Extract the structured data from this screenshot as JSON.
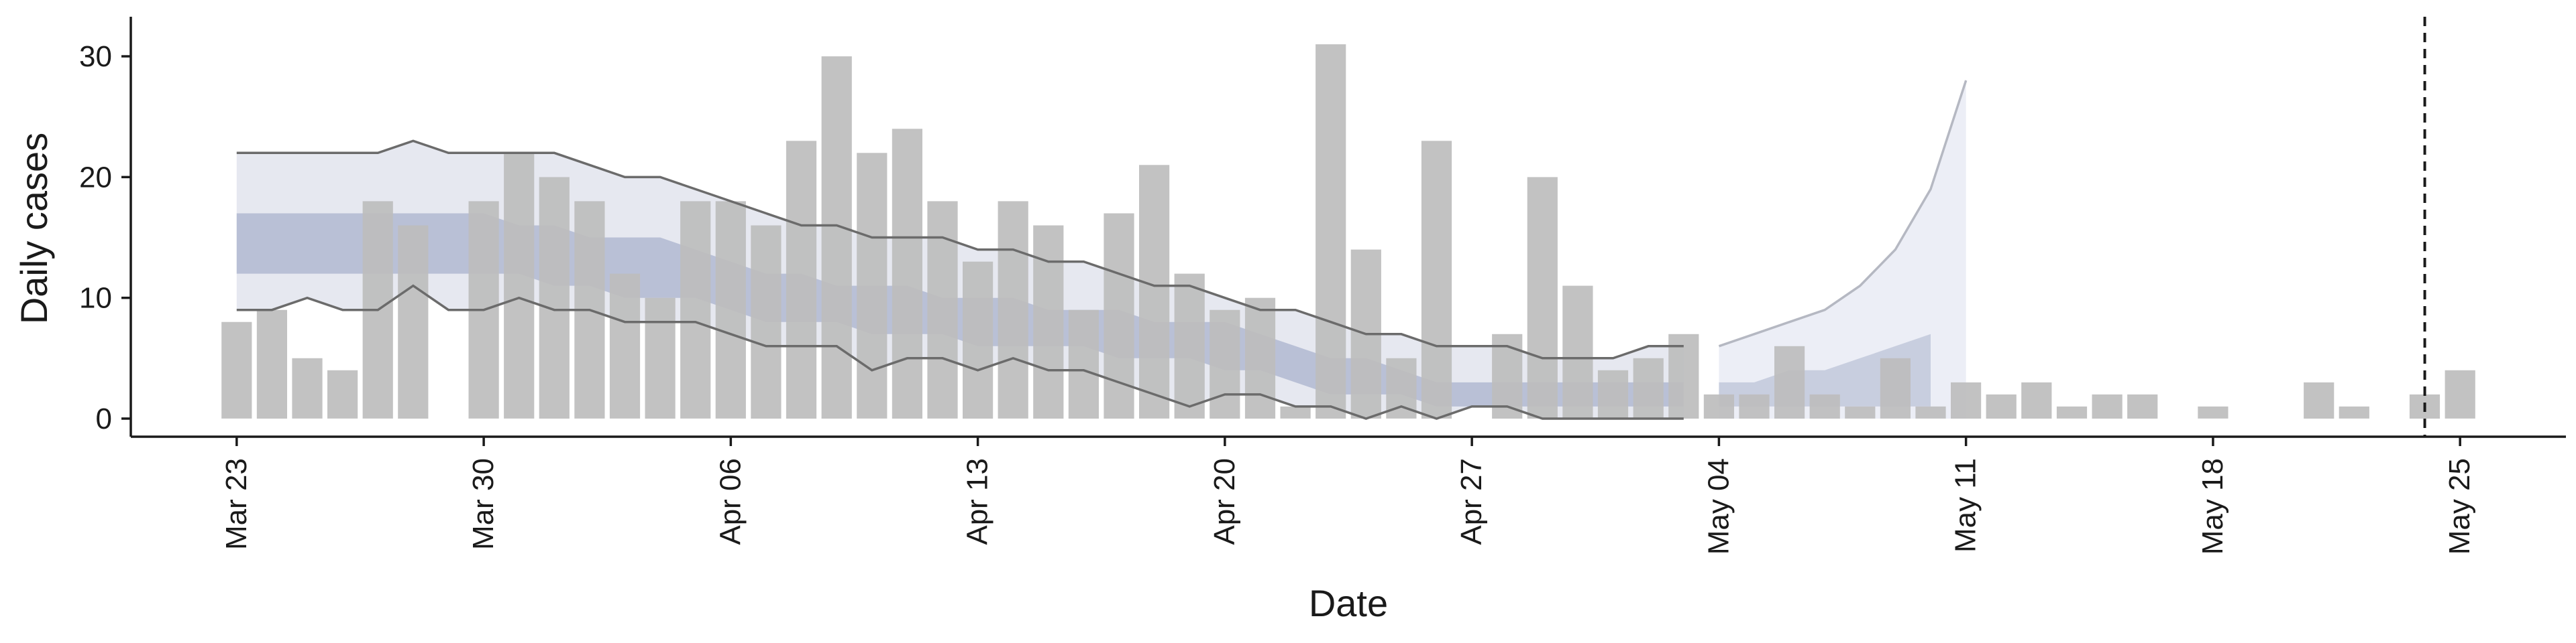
{
  "chart_data": {
    "type": "bar",
    "xlabel": "Date",
    "ylabel": "Daily cases",
    "x_tick_labels": [
      "Mar 23",
      "Mar 30",
      "Apr 06",
      "Apr 13",
      "Apr 20",
      "Apr 27",
      "May 04",
      "May 11",
      "May 18",
      "May 25"
    ],
    "y_ticks": [
      0,
      10,
      20,
      30
    ],
    "ylim": [
      -1.5,
      33
    ],
    "xlim": [
      "2020-03-20",
      "2020-05-28"
    ],
    "grid": false,
    "vline_date": "2020-05-24",
    "colors": {
      "bars": "#bdbdbd",
      "band_outer": "#e6e8f0",
      "band_inner": "#b9c0d6",
      "band_forecast": "#eceef6",
      "outer_lines": "#6b6b6b",
      "forecast_lines": "#b5b8c2",
      "axis": "#1a1a1a"
    },
    "bars": {
      "start_date": "2020-03-23",
      "values": [
        8,
        9,
        5,
        4,
        18,
        16,
        0,
        18,
        22,
        20,
        18,
        12,
        10,
        18,
        18,
        16,
        23,
        30,
        22,
        24,
        18,
        13,
        18,
        16,
        9,
        17,
        21,
        12,
        9,
        10,
        1,
        31,
        14,
        5,
        23,
        0,
        7,
        20,
        11,
        4,
        5,
        7,
        2,
        2,
        6,
        2,
        1,
        5,
        1,
        3,
        2,
        3,
        1,
        2,
        2,
        0,
        1,
        0,
        0,
        3,
        1,
        0,
        2,
        4
      ]
    },
    "nowcast_band": {
      "start_date": "2020-03-23",
      "outer_upper": [
        22,
        22,
        22,
        22,
        22,
        23,
        22,
        22,
        22,
        22,
        21,
        20,
        20,
        19,
        18,
        17,
        16,
        16,
        15,
        15,
        15,
        14,
        14,
        13,
        13,
        12,
        11,
        11,
        10,
        9,
        9,
        8,
        7,
        7,
        6,
        6,
        6,
        5,
        5,
        5,
        6,
        6
      ],
      "outer_lower": [
        9,
        9,
        10,
        9,
        9,
        11,
        9,
        9,
        10,
        9,
        9,
        8,
        8,
        8,
        7,
        6,
        6,
        6,
        4,
        5,
        5,
        4,
        5,
        4,
        4,
        3,
        2,
        1,
        2,
        2,
        1,
        1,
        0,
        1,
        0,
        1,
        1,
        0,
        0,
        0,
        0,
        0
      ],
      "inner_upper": [
        17,
        17,
        17,
        17,
        17,
        17,
        17,
        17,
        16,
        16,
        15,
        15,
        15,
        14,
        13,
        12,
        12,
        11,
        11,
        11,
        10,
        10,
        10,
        9,
        9,
        9,
        8,
        8,
        8,
        7,
        6,
        5,
        5,
        4,
        3,
        3,
        3,
        3,
        3,
        3,
        3,
        3
      ],
      "inner_lower": [
        12,
        12,
        12,
        12,
        12,
        12,
        12,
        12,
        12,
        11,
        11,
        10,
        10,
        10,
        9,
        8,
        8,
        8,
        7,
        7,
        7,
        6,
        6,
        6,
        6,
        5,
        5,
        5,
        4,
        4,
        3,
        2,
        2,
        2,
        1,
        1,
        1,
        1,
        1,
        1,
        1,
        1
      ]
    },
    "forecast_band": {
      "start_date": "2020-05-04",
      "outer_upper": [
        6,
        7,
        8,
        9,
        11,
        14,
        19,
        28
      ],
      "outer_lower": [
        0,
        0,
        0,
        0,
        0,
        0,
        0,
        0
      ],
      "inner_upper": [
        3,
        3,
        4,
        4,
        5,
        6,
        7
      ],
      "inner_lower": [
        1,
        1,
        1,
        1,
        1,
        1,
        1
      ]
    }
  }
}
